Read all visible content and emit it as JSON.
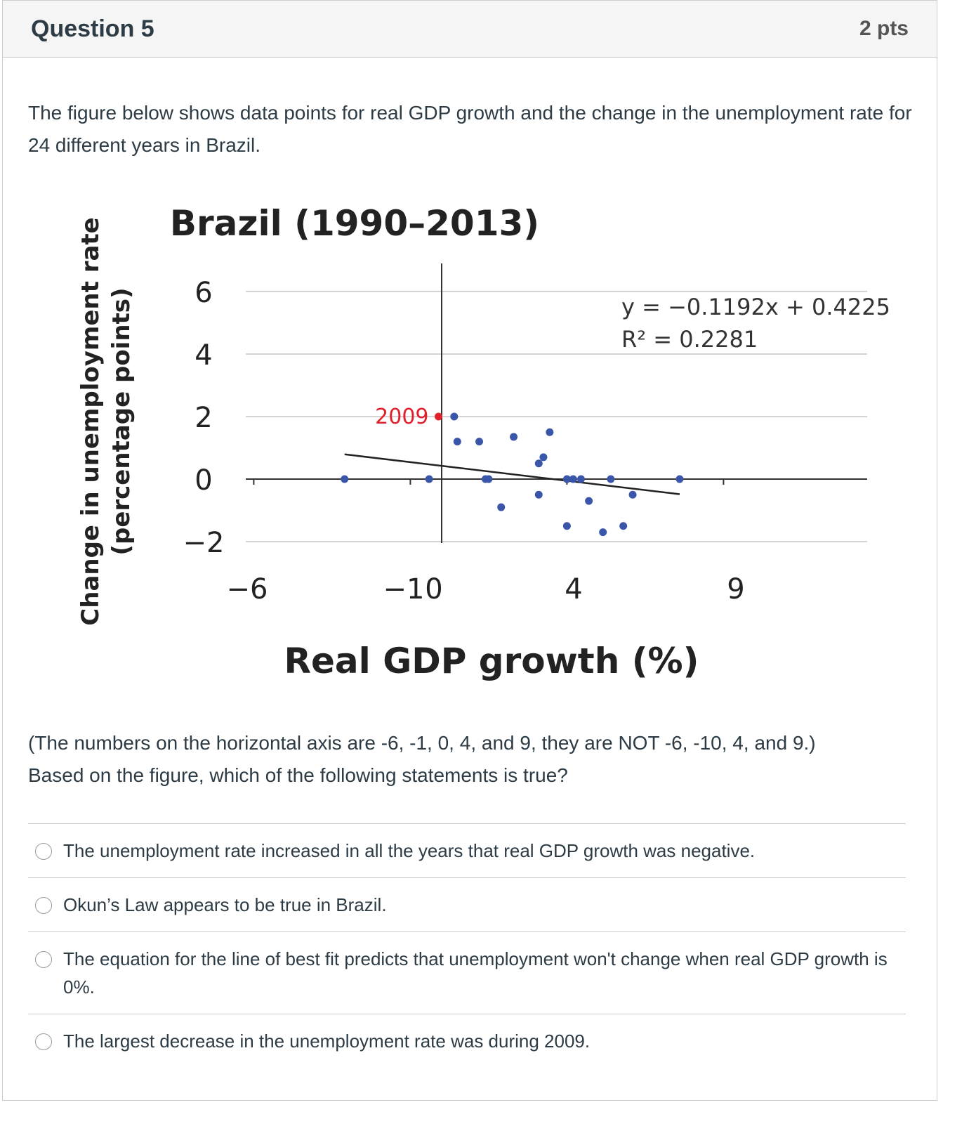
{
  "question": {
    "title": "Question 5",
    "points": "2 pts"
  },
  "prompt_1": "The figure below shows data points for real GDP growth and the change in the unemployment rate for 24 different years in Brazil.",
  "prompt_2": "(The numbers on the horizontal axis are -6, -1, 0, 4, and 9, they are NOT -6, -10, 4, and 9.)",
  "prompt_3": "Based on the figure, which of the following statements is true?",
  "chart_data": {
    "type": "scatter",
    "title": "Brazil (1990–2013)",
    "xlabel": "Real GDP growth (%)",
    "ylabel": "Change in unemployment rate (percentage points)",
    "ylabel_line1": "Change in unemployment rate",
    "ylabel_line2": "(percentage points)",
    "x_tick_labels": [
      "−6",
      "−1",
      "0",
      "4",
      "9"
    ],
    "y_ticks": [
      "6",
      "4",
      "2",
      "0",
      "−2"
    ],
    "yticks_values": [
      6,
      4,
      2,
      0,
      -2
    ],
    "xlim": [
      -6,
      13
    ],
    "ylim": [
      -2,
      7
    ],
    "grid": "horizontal",
    "trendline": {
      "equation": "y = −0.1192x + 0.4225",
      "r2": "R² = 0.2281",
      "slope": -0.1192,
      "intercept": 0.4225,
      "x_range": [
        -3.1,
        7.6
      ]
    },
    "highlight": {
      "label": "2009",
      "x": -0.1,
      "y": 2.0,
      "color": "#e0202a"
    },
    "point_color": "#3a56a8",
    "points": [
      [
        -3.1,
        0
      ],
      [
        -0.4,
        0
      ],
      [
        0.4,
        2.0
      ],
      [
        0.5,
        1.2
      ],
      [
        1.2,
        1.2
      ],
      [
        1.4,
        0
      ],
      [
        1.5,
        0
      ],
      [
        1.9,
        -0.9
      ],
      [
        2.3,
        1.35
      ],
      [
        3.1,
        0.5
      ],
      [
        3.25,
        0.7
      ],
      [
        3.1,
        -0.5
      ],
      [
        3.45,
        1.5
      ],
      [
        4.0,
        0
      ],
      [
        4.0,
        -1.5
      ],
      [
        4.45,
        0
      ],
      [
        4.7,
        -0.7
      ],
      [
        5.15,
        -1.7
      ],
      [
        5.4,
        0
      ],
      [
        5.8,
        -1.5
      ],
      [
        6.1,
        -0.5
      ],
      [
        7.6,
        0
      ],
      [
        4.2,
        0
      ]
    ]
  },
  "answers": [
    "The unemployment rate increased in all the years that real GDP growth was negative.",
    "Okun’s Law appears to be true in Brazil.",
    "The equation for the line of best fit predicts that unemployment won't change when real GDP growth is 0%.",
    "The largest decrease in the unemployment rate was during 2009."
  ]
}
